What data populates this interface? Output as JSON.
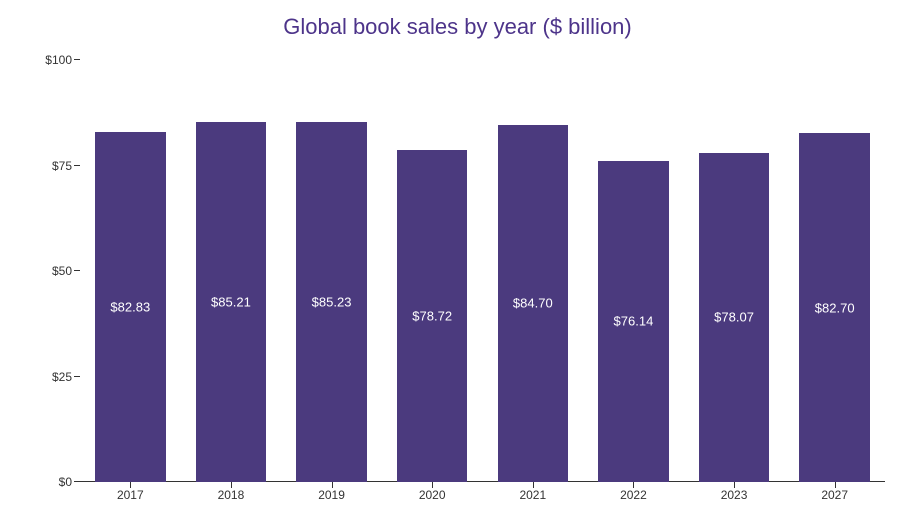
{
  "chart": {
    "type": "bar",
    "title": "Global book sales by year ($ billion)",
    "title_color": "#4d348a",
    "title_fontsize": 22,
    "categories": [
      "2017",
      "2018",
      "2019",
      "2020",
      "2021",
      "2022",
      "2023",
      "2027"
    ],
    "values": [
      82.83,
      85.21,
      85.23,
      78.72,
      84.7,
      76.14,
      78.07,
      82.7
    ],
    "value_labels": [
      "$82.83",
      "$85.21",
      "$85.23",
      "$78.72",
      "$84.70",
      "$76.14",
      "$78.07",
      "$82.70"
    ],
    "bar_color": "#4b3a7e",
    "bar_label_color": "#ffffff",
    "bar_label_fontsize": 13,
    "bar_width_ratio": 0.7,
    "ylim": [
      0,
      100
    ],
    "ytick_step": 25,
    "ytick_labels": [
      "$0",
      "$25",
      "$50",
      "$75",
      "$100"
    ],
    "axis_color": "#333333",
    "axis_label_fontsize": 12,
    "axis_label_color": "#333333",
    "grid_color": "#dddddd",
    "background_color": "#ffffff",
    "show_gridlines": false
  }
}
